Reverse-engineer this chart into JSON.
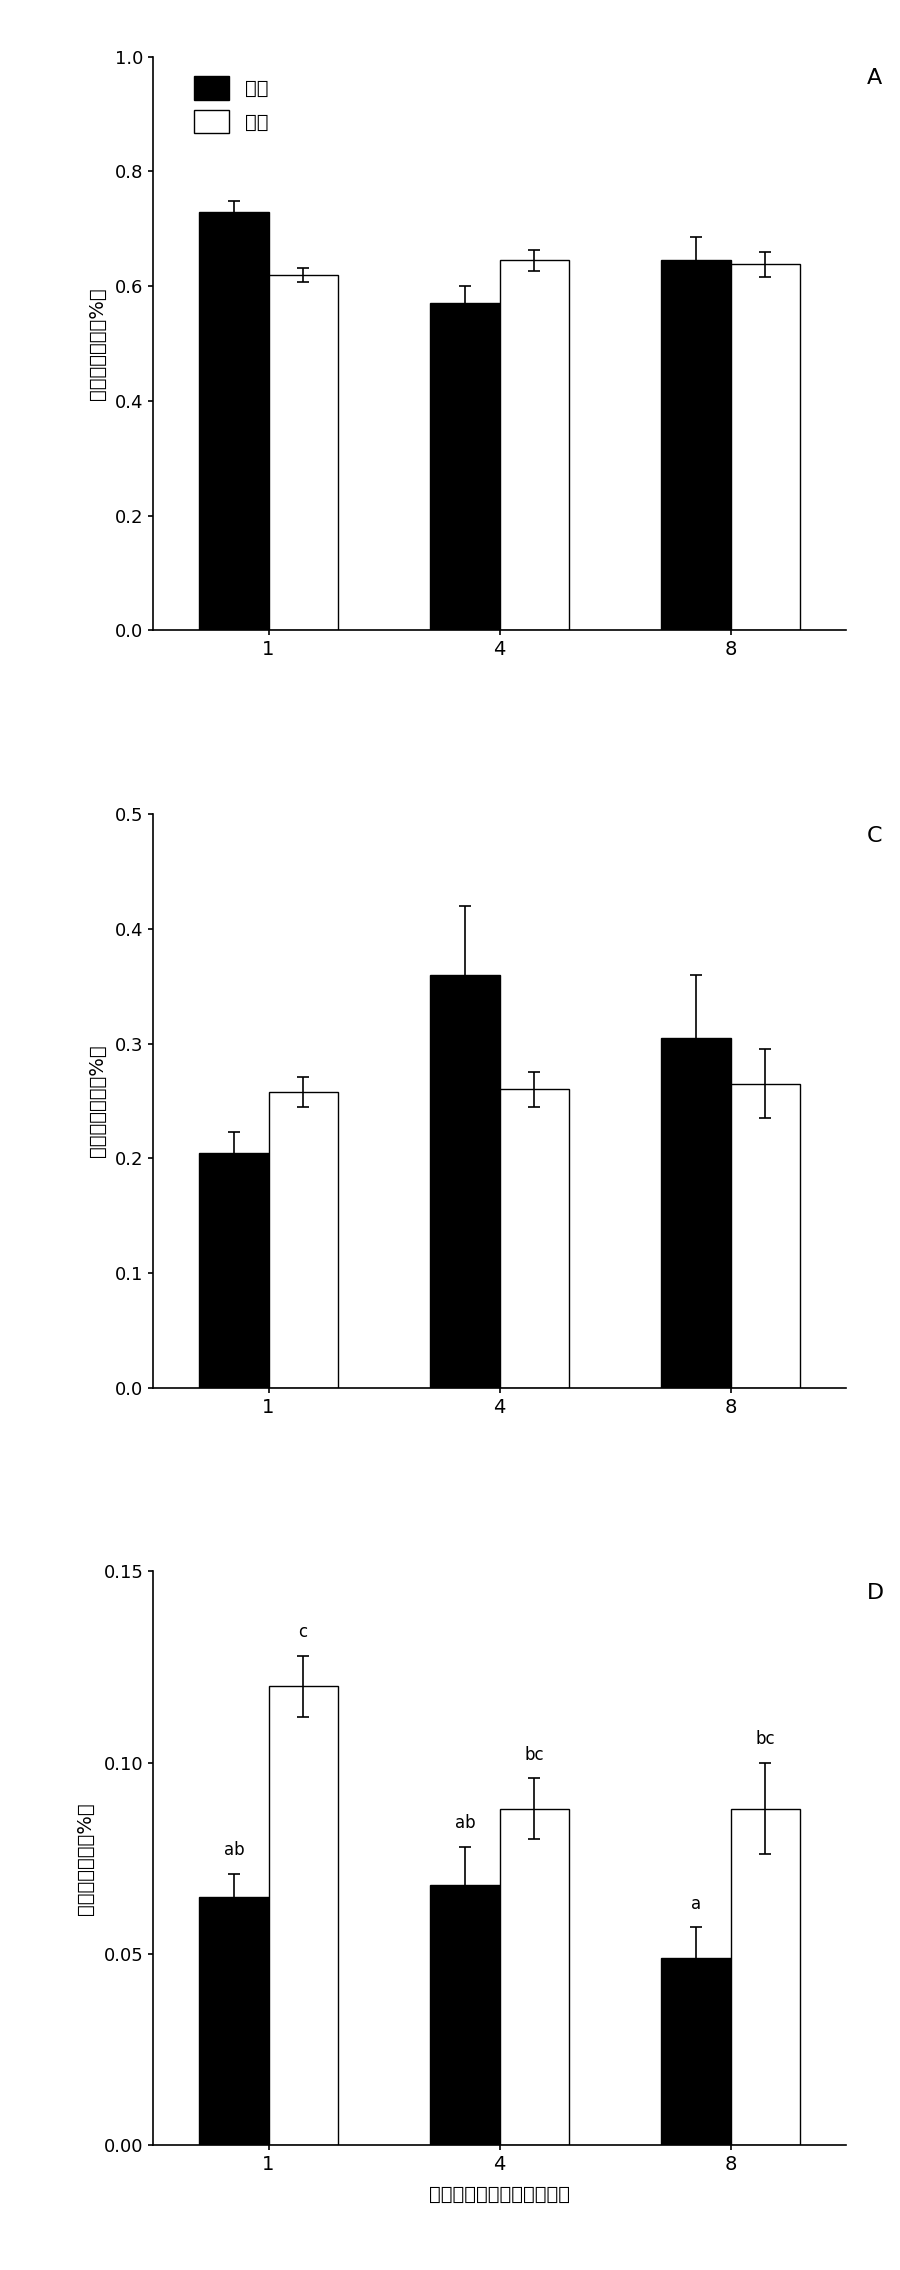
{
  "panels": [
    {
      "label": "A",
      "ylabel": "叶生物量分配（%）",
      "ylim": [
        0.0,
        1.0
      ],
      "yticks": [
        0.0,
        0.2,
        0.4,
        0.6,
        0.8,
        1.0
      ],
      "ytick_labels": [
        "0.0",
        "0.2",
        "0.4",
        "0.6",
        "0.8",
        "1.0"
      ],
      "categories": [
        "1",
        "4",
        "8"
      ],
      "control_means": [
        0.73,
        0.57,
        0.645
      ],
      "control_errors": [
        0.018,
        0.03,
        0.04
      ],
      "flood_means": [
        0.62,
        0.645,
        0.638
      ],
      "flood_errors": [
        0.012,
        0.018,
        0.022
      ],
      "control_labels": [
        "",
        "",
        ""
      ],
      "flood_labels": [
        "",
        "",
        ""
      ],
      "show_legend": true
    },
    {
      "label": "C",
      "ylabel": "茎生物量分配（%）",
      "ylim": [
        0.0,
        0.5
      ],
      "yticks": [
        0.0,
        0.1,
        0.2,
        0.3,
        0.4,
        0.5
      ],
      "ytick_labels": [
        "0.0",
        "0.1",
        "0.2",
        "0.3",
        "0.4",
        "0.5"
      ],
      "categories": [
        "1",
        "4",
        "8"
      ],
      "control_means": [
        0.205,
        0.36,
        0.305
      ],
      "control_errors": [
        0.018,
        0.06,
        0.055
      ],
      "flood_means": [
        0.258,
        0.26,
        0.265
      ],
      "flood_errors": [
        0.013,
        0.015,
        0.03
      ],
      "control_labels": [
        "",
        "",
        ""
      ],
      "flood_labels": [
        "",
        "",
        ""
      ],
      "show_legend": false
    },
    {
      "label": "D",
      "ylabel": "根生物量分配（%）",
      "ylim": [
        0.0,
        0.15
      ],
      "yticks": [
        0.0,
        0.05,
        0.1,
        0.15
      ],
      "ytick_labels": [
        "0.00",
        "0.05",
        "0.10",
        "0.15"
      ],
      "categories": [
        "1",
        "4",
        "8"
      ],
      "control_means": [
        0.065,
        0.068,
        0.049
      ],
      "control_errors": [
        0.006,
        0.01,
        0.008
      ],
      "flood_means": [
        0.12,
        0.088,
        0.088
      ],
      "flood_errors": [
        0.008,
        0.008,
        0.012
      ],
      "control_labels": [
        "ab",
        "ab",
        "a"
      ],
      "flood_labels": [
        "c",
        "bc",
        "bc"
      ],
      "show_legend": false
    }
  ],
  "xlabel": "遗传多样性（基因型数量）",
  "legend_control": "对照",
  "legend_flood": "水淠",
  "bar_width": 0.3,
  "control_color": "#000000",
  "flood_color": "#ffffff",
  "flood_edgecolor": "#000000",
  "figsize": [
    9.0,
    22.7
  ],
  "dpi": 100
}
